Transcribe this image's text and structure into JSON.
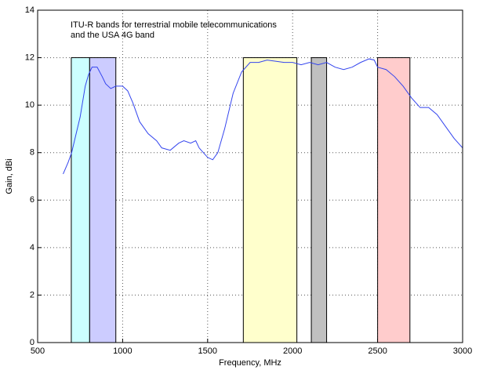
{
  "chart_data": {
    "type": "line",
    "annotation": [
      "ITU-R bands for terrestrial mobile telecommunications",
      "and the USA 4G band"
    ],
    "xlabel": "Frequency, MHz",
    "ylabel": "Gain, dBi",
    "xlim": [
      500,
      3000
    ],
    "ylim": [
      0,
      14
    ],
    "xticks": [
      500,
      1000,
      1500,
      2000,
      2500,
      3000
    ],
    "yticks": [
      0,
      2,
      4,
      6,
      8,
      10,
      12,
      14
    ],
    "grid": true,
    "bands": [
      {
        "x": [
          698,
          806
        ],
        "y": 12,
        "color": "#ccffff"
      },
      {
        "x": [
          806,
          960
        ],
        "y": 12,
        "color": "#ccccff"
      },
      {
        "x": [
          1710,
          2025
        ],
        "y": 12,
        "color": "#ffffcc"
      },
      {
        "x": [
          2110,
          2200
        ],
        "y": 12,
        "color": "#c0c0c0"
      },
      {
        "x": [
          2500,
          2690
        ],
        "y": 12,
        "color": "#ffcccc"
      }
    ],
    "series": [
      {
        "color": "#3344ee",
        "x": [
          650,
          680,
          700,
          720,
          750,
          780,
          800,
          820,
          850,
          880,
          900,
          930,
          960,
          1000,
          1030,
          1060,
          1100,
          1150,
          1200,
          1230,
          1280,
          1330,
          1360,
          1400,
          1430,
          1450,
          1500,
          1530,
          1560,
          1600,
          1650,
          1700,
          1750,
          1800,
          1850,
          1900,
          1950,
          2000,
          2050,
          2100,
          2150,
          2200,
          2250,
          2300,
          2350,
          2400,
          2450,
          2480,
          2500,
          2550,
          2600,
          2650,
          2700,
          2750,
          2800,
          2850,
          2900,
          2950,
          3000
        ],
        "values": [
          7.1,
          7.6,
          8.0,
          8.6,
          9.5,
          10.8,
          11.3,
          11.6,
          11.6,
          11.2,
          10.9,
          10.7,
          10.8,
          10.8,
          10.6,
          10.1,
          9.3,
          8.8,
          8.5,
          8.2,
          8.1,
          8.4,
          8.5,
          8.4,
          8.5,
          8.2,
          7.8,
          7.7,
          8.0,
          9.0,
          10.5,
          11.4,
          11.8,
          11.8,
          11.9,
          11.85,
          11.8,
          11.8,
          11.7,
          11.8,
          11.7,
          11.8,
          11.6,
          11.5,
          11.6,
          11.8,
          11.95,
          11.9,
          11.6,
          11.5,
          11.2,
          10.8,
          10.3,
          9.9,
          9.9,
          9.6,
          9.1,
          8.6,
          8.2
        ]
      }
    ]
  }
}
